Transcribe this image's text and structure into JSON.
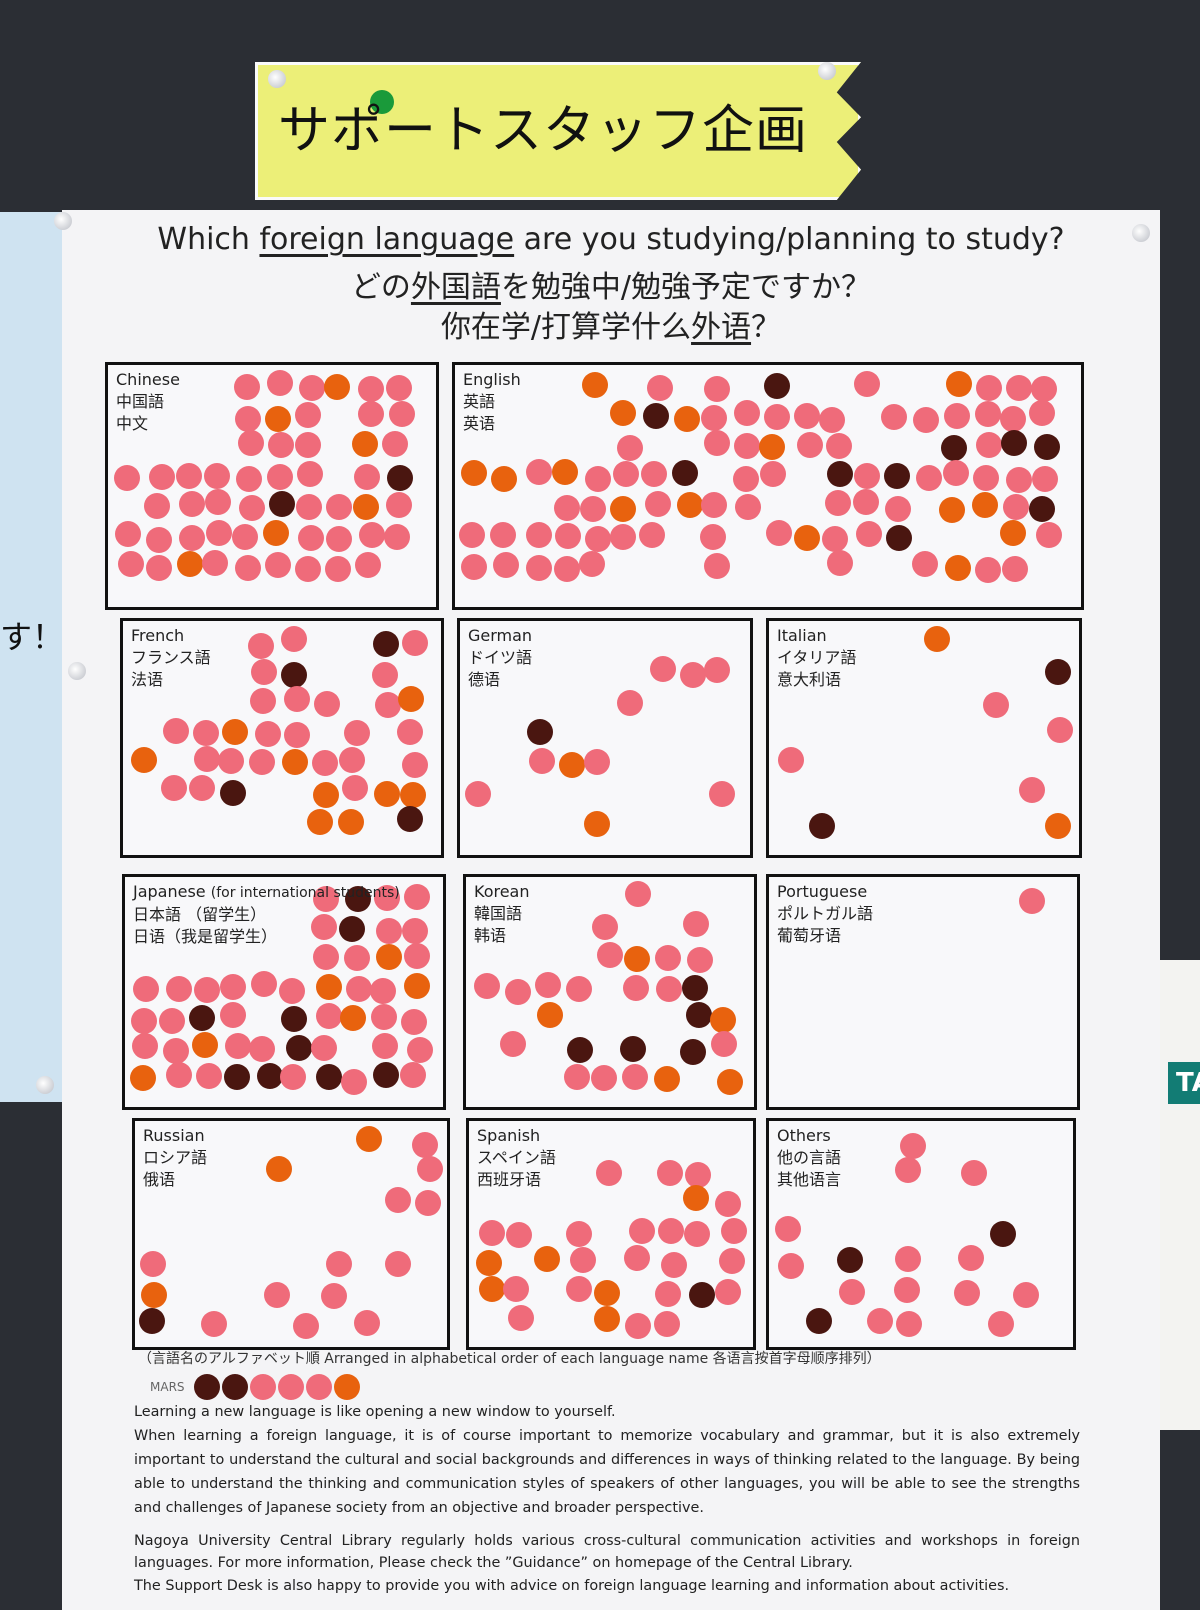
{
  "header": {
    "title": "サポートスタッフ企画"
  },
  "question": [
    {
      "pre": "Which ",
      "underlined": "foreign language",
      "post": " are you studying/planning to study?"
    },
    {
      "pre": "どの",
      "underlined": "外国語",
      "post": "を勉強中/勉強予定ですか？"
    },
    {
      "pre": "你在学/打算学什么",
      "underlined": "外语",
      "post": "？"
    }
  ],
  "languages": [
    {
      "en": "Chinese",
      "ja": "中国語",
      "zh": "中文"
    },
    {
      "en": "English",
      "ja": "英語",
      "zh": "英语"
    },
    {
      "en": "French",
      "ja": "フランス語",
      "zh": "法语"
    },
    {
      "en": "German",
      "ja": "ドイツ語",
      "zh": "德语"
    },
    {
      "en": "Italian",
      "ja": "イタリア語",
      "zh": "意大利语"
    },
    {
      "en": "Japanese",
      "en_note": "(for international students)",
      "ja": "日本語 （留学生）",
      "zh": "日语（我是留学生）"
    },
    {
      "en": "Korean",
      "ja": "韓国語",
      "zh": "韩语"
    },
    {
      "en": "Portuguese",
      "ja": "ポルトガル語",
      "zh": "葡萄牙语"
    },
    {
      "en": "Russian",
      "ja": "ロシア語",
      "zh": "俄语"
    },
    {
      "en": "Spanish",
      "ja": "スペイン語",
      "zh": "西班牙语"
    },
    {
      "en": "Others",
      "ja": "他の言語",
      "zh": "其他语言"
    }
  ],
  "note": "（言語名のアルファベット順 Arranged in alphabetical order of each language name 各语言按首字母顺序排列）",
  "sample_label": "MARS",
  "paragraphs": [
    "Learning a new language is like opening a new window to yourself.",
    "When learning a foreign language, it is of course important to memorize vocabulary and grammar, but it is also extremely important to understand the cultural and social backgrounds and differences in ways of thinking related to the language. By being able to understand the thinking and communication styles of speakers of other languages, you will be able to see the strengths and challenges of Japanese society from an objective and broader perspective.",
    "Nagoya University Central Library regularly holds various cross-cultural communication activities and workshops in foreign languages. For more information, Please check the ”Guidance” on homepage of the Central Library.",
    "The Support Desk is also happy to provide you with advice on foreign language learning and information about activities."
  ],
  "left_sheet": {
    "text": "す！"
  },
  "right_sheet": {
    "tab": "TA"
  }
}
